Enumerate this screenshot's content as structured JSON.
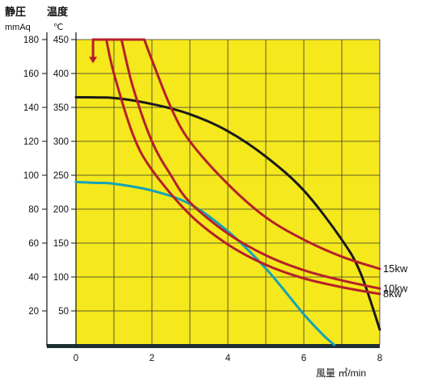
{
  "chart_data": {
    "type": "line",
    "axes": {
      "x": {
        "label": "風量 ㎥/min",
        "ticks": [
          "0",
          "2",
          "4",
          "6",
          "8"
        ],
        "range": [
          0,
          8
        ],
        "grid": true
      },
      "y_left": {
        "label_top": "静圧",
        "unit": "mmAq",
        "ticks": [
          "20",
          "40",
          "60",
          "80",
          "100",
          "120",
          "140",
          "160",
          "180"
        ],
        "range": [
          0,
          180
        ]
      },
      "y_right_inner": {
        "label_top": "温度",
        "unit": "℃",
        "ticks": [
          "50",
          "100",
          "150",
          "200",
          "250",
          "300",
          "350",
          "400",
          "450"
        ],
        "range": [
          0,
          450
        ]
      }
    },
    "plot_background": "#f5e81c",
    "series": [
      {
        "kind": "fan-static-pressure",
        "axis": "mmAq",
        "color": "#1a1a1a",
        "x": [
          0,
          1,
          2,
          3,
          4,
          5,
          6,
          7,
          7.5,
          8
        ],
        "y": [
          146,
          145.5,
          142,
          136,
          126,
          111,
          91,
          62,
          42,
          9
        ]
      },
      {
        "kind": "fan-static-pressure",
        "axis": "mmAq",
        "color": "#14a3b8",
        "x": [
          0,
          0.5,
          1,
          2,
          3,
          4,
          5,
          6,
          6.5,
          6.8
        ],
        "y": [
          96,
          95.5,
          95,
          91,
          83,
          67,
          45,
          18,
          6,
          0
        ]
      },
      {
        "name": "15kw",
        "axis": "℃",
        "color": "#b5202a",
        "x": [
          1.8,
          2,
          2.5,
          3,
          4,
          5,
          6,
          7,
          8
        ],
        "y": [
          450,
          420,
          350,
          300,
          237,
          188,
          155,
          130,
          112
        ]
      },
      {
        "name": "10kw",
        "axis": "℃",
        "color": "#b5202a",
        "x": [
          1.2,
          1.5,
          2,
          2.5,
          3,
          4,
          5,
          6,
          7,
          8
        ],
        "y": [
          450,
          380,
          300,
          250,
          210,
          164,
          132,
          110,
          95,
          83
        ]
      },
      {
        "name": "8kw",
        "axis": "℃",
        "color": "#b5202a",
        "x": [
          0.8,
          1,
          1.5,
          2,
          3,
          4,
          5,
          6,
          7,
          8
        ],
        "y": [
          450,
          400,
          310,
          258,
          192,
          148,
          118,
          98,
          85,
          75
        ]
      }
    ],
    "annotations": [
      {
        "kind": "red-bracket-arrow",
        "color": "#b5202a",
        "x_start": 0.45,
        "x_end": 1.8,
        "y_temp": 450,
        "arrow_to_temp": 415
      }
    ]
  }
}
